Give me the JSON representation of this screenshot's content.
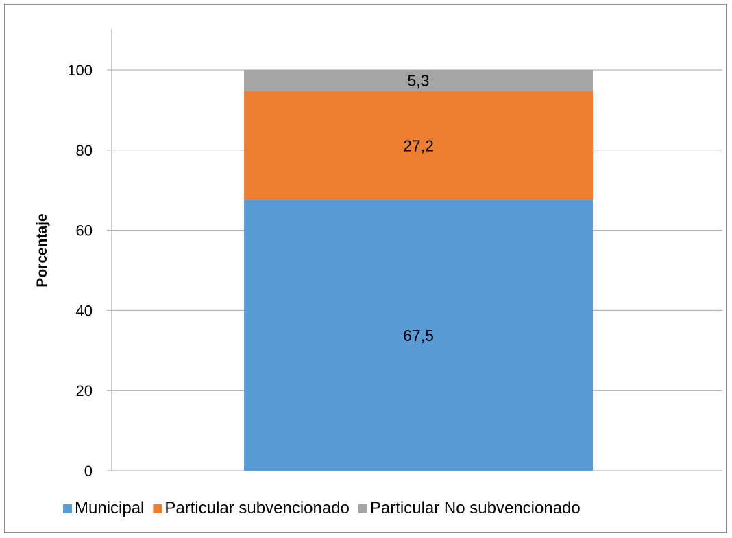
{
  "chart_data": {
    "type": "bar",
    "stacked": true,
    "categories": [
      ""
    ],
    "series": [
      {
        "name": "Municipal",
        "values": [
          67.5
        ],
        "label": "67,5",
        "color": "#5b9bd5"
      },
      {
        "name": "Particular subvencionado",
        "values": [
          27.2
        ],
        "label": "27,2",
        "color": "#ed7d31"
      },
      {
        "name": "Particular No subvencionado",
        "values": [
          5.3
        ],
        "label": "5,3",
        "color": "#a5a5a5"
      }
    ],
    "title": "",
    "xlabel": "",
    "ylabel": "Porcentaje",
    "ylim": [
      0,
      100
    ],
    "yticks": [
      0,
      20,
      40,
      60,
      80,
      100
    ],
    "grid": true,
    "legend_position": "bottom",
    "gridline_color": "#a6a6a6"
  }
}
